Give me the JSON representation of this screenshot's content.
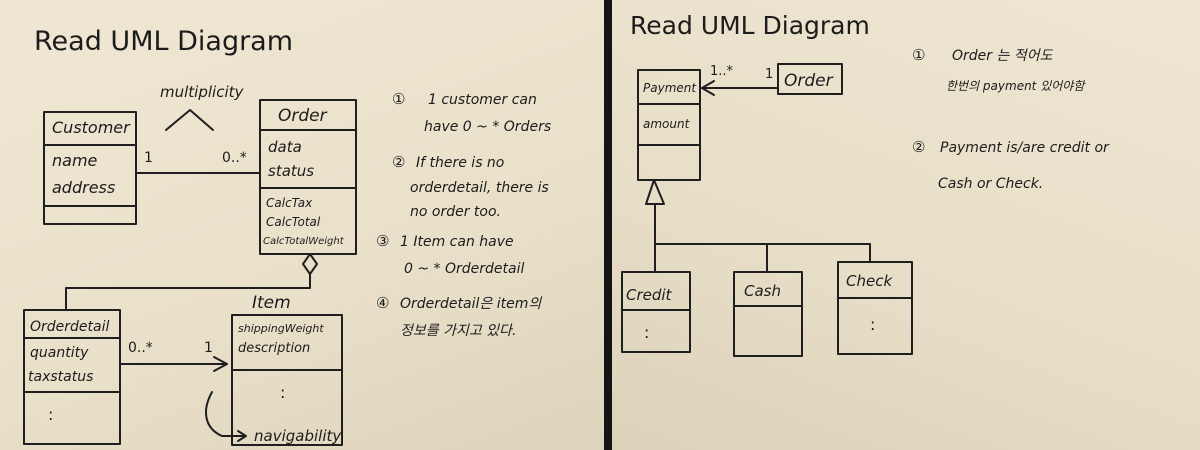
{
  "left": {
    "title": "Read UML Diagram",
    "multiplicity_label": "multiplicity",
    "customer": {
      "name": "Customer",
      "attributes": [
        "name",
        "address"
      ]
    },
    "order": {
      "name": "Order",
      "attributes": [
        "data",
        "status"
      ],
      "operations": [
        "CalcTax",
        "CalcTotal",
        "CalcTotalWeight"
      ]
    },
    "orderdetail": {
      "name": "Orderdetail",
      "attributes": [
        "quantity",
        "taxstatus"
      ],
      "ellipsis": ":"
    },
    "item": {
      "name": "Item",
      "attributes": [
        "shippingWeight",
        "description"
      ],
      "ellipsis": ":"
    },
    "assoc_customer_order": {
      "left": "1",
      "right": "0..*"
    },
    "assoc_detail_item": {
      "left": "0..*",
      "right": "1"
    },
    "navigability_label": "navigability",
    "notes": [
      {
        "num": "①",
        "lines": [
          "1 customer can",
          "have 0 ~ * Orders"
        ]
      },
      {
        "num": "②",
        "lines": [
          "If there is no",
          "orderdetail, there is",
          "no order too."
        ]
      },
      {
        "num": "③",
        "lines": [
          "1 Item can have",
          "0 ~ * Orderdetail"
        ]
      },
      {
        "num": "④",
        "lines": [
          "Orderdetail은 item의",
          "정보를 가지고 있다."
        ]
      }
    ]
  },
  "right": {
    "title": "Read UML Diagram",
    "payment": {
      "name": "Payment",
      "attributes": [
        "amount"
      ]
    },
    "order": {
      "name": "Order"
    },
    "assoc": {
      "left": "1..*",
      "right": "1"
    },
    "subclasses": [
      {
        "name": "Credit",
        "ellipsis": ":"
      },
      {
        "name": "Cash",
        "ellipsis": ""
      },
      {
        "name": "Check",
        "ellipsis": ":"
      }
    ],
    "notes": [
      {
        "num": "①",
        "lines": [
          "Order 는 적어도",
          "한번의 payment 있어야함"
        ]
      },
      {
        "num": "②",
        "lines": [
          "Payment is/are credit or",
          "Cash or Check."
        ]
      }
    ]
  },
  "colors": {
    "paper": "#ece4cf",
    "ink": "#1c1c1c",
    "background": "#141414"
  }
}
